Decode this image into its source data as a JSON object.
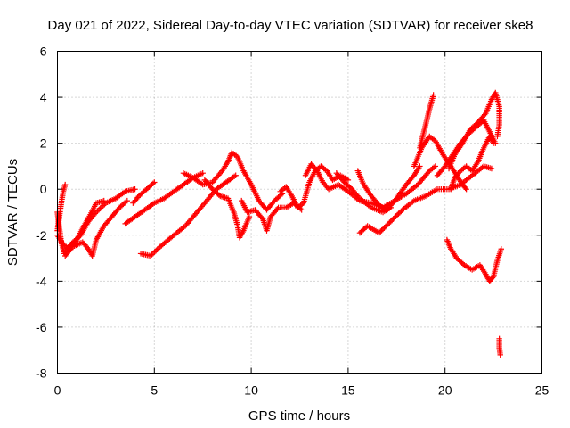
{
  "chart_data": {
    "type": "scatter",
    "title": "Day 021 of 2022, Sidereal Day-to-day VTEC variation (SDTVAR) for receiver ske8",
    "xlabel": "GPS time / hours",
    "ylabel": "SDTVAR / TECUs",
    "xlim": [
      0,
      25
    ],
    "ylim": [
      -8,
      6
    ],
    "xticks": [
      0,
      5,
      10,
      15,
      20,
      25
    ],
    "yticks": [
      -8,
      -6,
      -4,
      -2,
      0,
      2,
      4,
      6
    ],
    "grid": true,
    "marker": "+",
    "color": "#ff0000",
    "series": [
      {
        "name": "t1",
        "points": [
          [
            0.0,
            -1.0
          ],
          [
            0.1,
            -1.7
          ],
          [
            0.2,
            -2.3
          ],
          [
            0.35,
            -2.8
          ],
          [
            0.5,
            -2.6
          ],
          [
            0.8,
            -2.3
          ],
          [
            1.2,
            -2.0
          ],
          [
            1.6,
            -1.4
          ],
          [
            2.0,
            -1.0
          ],
          [
            2.5,
            -0.6
          ],
          [
            3.0,
            -0.4
          ],
          [
            3.5,
            -0.1
          ],
          [
            4.0,
            0.0
          ]
        ]
      },
      {
        "name": "t2",
        "points": [
          [
            0.0,
            -1.8
          ],
          [
            0.1,
            -1.2
          ],
          [
            0.2,
            -0.6
          ],
          [
            0.3,
            -0.1
          ],
          [
            0.4,
            0.2
          ]
        ]
      },
      {
        "name": "t3",
        "points": [
          [
            0.4,
            -2.9
          ],
          [
            0.8,
            -2.5
          ],
          [
            1.3,
            -2.3
          ],
          [
            1.6,
            -2.6
          ],
          [
            1.8,
            -2.9
          ],
          [
            2.0,
            -2.2
          ],
          [
            2.4,
            -1.6
          ],
          [
            2.8,
            -1.2
          ],
          [
            3.2,
            -0.8
          ],
          [
            3.6,
            -0.5
          ]
        ]
      },
      {
        "name": "t4",
        "points": [
          [
            0.0,
            -2.0
          ],
          [
            0.3,
            -2.4
          ],
          [
            0.6,
            -2.6
          ],
          [
            1.0,
            -2.2
          ],
          [
            1.3,
            -1.7
          ],
          [
            1.7,
            -1.1
          ],
          [
            2.0,
            -0.6
          ],
          [
            2.4,
            -0.5
          ]
        ]
      },
      {
        "name": "t5",
        "points": [
          [
            3.5,
            -1.5
          ],
          [
            4.0,
            -1.2
          ],
          [
            4.5,
            -0.9
          ],
          [
            5.0,
            -0.6
          ],
          [
            5.5,
            -0.4
          ],
          [
            6.0,
            -0.1
          ],
          [
            6.5,
            0.2
          ],
          [
            7.0,
            0.5
          ],
          [
            7.5,
            0.7
          ]
        ]
      },
      {
        "name": "t6",
        "points": [
          [
            3.9,
            -0.6
          ],
          [
            4.2,
            -0.3
          ],
          [
            4.6,
            0.0
          ],
          [
            5.0,
            0.3
          ]
        ]
      },
      {
        "name": "t7",
        "points": [
          [
            4.3,
            -2.8
          ],
          [
            4.8,
            -2.9
          ],
          [
            5.3,
            -2.5
          ],
          [
            6.0,
            -2.0
          ],
          [
            6.6,
            -1.6
          ],
          [
            7.2,
            -1.0
          ],
          [
            7.7,
            -0.5
          ],
          [
            8.2,
            0.0
          ],
          [
            8.7,
            0.3
          ],
          [
            9.2,
            0.6
          ]
        ]
      },
      {
        "name": "t8",
        "points": [
          [
            6.5,
            0.7
          ],
          [
            7.0,
            0.5
          ],
          [
            7.5,
            0.2
          ],
          [
            8.0,
            0.3
          ],
          [
            8.5,
            0.8
          ],
          [
            8.8,
            1.2
          ],
          [
            9.0,
            1.6
          ],
          [
            9.3,
            1.4
          ],
          [
            9.6,
            0.8
          ],
          [
            10.0,
            0.2
          ],
          [
            10.4,
            -0.5
          ],
          [
            10.8,
            -0.9
          ],
          [
            11.2,
            -0.5
          ],
          [
            11.6,
            -0.2
          ]
        ]
      },
      {
        "name": "t9",
        "points": [
          [
            7.6,
            0.4
          ],
          [
            8.0,
            0.0
          ],
          [
            8.4,
            -0.3
          ],
          [
            8.8,
            -0.4
          ],
          [
            9.1,
            -1.0
          ],
          [
            9.3,
            -1.6
          ],
          [
            9.4,
            -2.1
          ],
          [
            9.6,
            -1.8
          ],
          [
            9.9,
            -1.2
          ]
        ]
      },
      {
        "name": "t10",
        "points": [
          [
            9.5,
            -0.5
          ],
          [
            9.8,
            -1.0
          ],
          [
            10.2,
            -0.9
          ],
          [
            10.6,
            -1.3
          ],
          [
            10.8,
            -1.8
          ],
          [
            11.0,
            -1.2
          ],
          [
            11.4,
            -0.8
          ],
          [
            11.8,
            -0.8
          ],
          [
            12.2,
            -0.6
          ],
          [
            12.6,
            -0.9
          ]
        ]
      },
      {
        "name": "t11",
        "points": [
          [
            11.5,
            -0.1
          ],
          [
            11.8,
            0.1
          ],
          [
            12.1,
            -0.3
          ],
          [
            12.4,
            -0.8
          ],
          [
            12.7,
            -0.6
          ],
          [
            13.0,
            0.3
          ],
          [
            13.3,
            0.8
          ],
          [
            13.6,
            1.0
          ],
          [
            13.9,
            0.8
          ],
          [
            14.2,
            0.4
          ],
          [
            14.6,
            0.6
          ],
          [
            15.0,
            0.4
          ]
        ]
      },
      {
        "name": "t12",
        "points": [
          [
            12.8,
            0.6
          ],
          [
            13.1,
            1.1
          ],
          [
            13.4,
            0.8
          ],
          [
            13.7,
            0.3
          ],
          [
            14.0,
            0.0
          ],
          [
            14.5,
            0.2
          ],
          [
            15.0,
            -0.1
          ],
          [
            15.6,
            -0.5
          ],
          [
            16.2,
            -0.6
          ],
          [
            16.8,
            -0.8
          ],
          [
            17.4,
            -0.5
          ],
          [
            18.0,
            -0.2
          ],
          [
            18.6,
            0.2
          ],
          [
            19.2,
            0.8
          ],
          [
            19.5,
            1.0
          ]
        ]
      },
      {
        "name": "t13",
        "points": [
          [
            15.5,
            0.8
          ],
          [
            15.8,
            0.2
          ],
          [
            16.2,
            -0.3
          ],
          [
            16.6,
            -0.7
          ],
          [
            17.0,
            -0.9
          ],
          [
            17.5,
            -0.4
          ],
          [
            18.0,
            0.2
          ],
          [
            18.4,
            0.6
          ],
          [
            18.7,
            1.0
          ]
        ]
      },
      {
        "name": "t14",
        "points": [
          [
            14.4,
            0.7
          ],
          [
            14.8,
            0.3
          ],
          [
            15.2,
            0.0
          ],
          [
            15.6,
            -0.4
          ],
          [
            16.2,
            -0.8
          ],
          [
            16.8,
            -1.0
          ],
          [
            17.2,
            -0.8
          ]
        ]
      },
      {
        "name": "t15",
        "points": [
          [
            15.6,
            -1.9
          ],
          [
            16.0,
            -1.6
          ],
          [
            16.6,
            -1.9
          ],
          [
            17.2,
            -1.4
          ],
          [
            17.8,
            -0.9
          ],
          [
            18.4,
            -0.5
          ],
          [
            19.0,
            -0.3
          ],
          [
            19.6,
            0.0
          ],
          [
            20.2,
            0.0
          ],
          [
            20.8,
            0.2
          ],
          [
            21.4,
            0.6
          ],
          [
            22.0,
            1.0
          ],
          [
            22.4,
            0.9
          ]
        ]
      },
      {
        "name": "t16",
        "points": [
          [
            18.7,
            1.8
          ],
          [
            19.0,
            2.8
          ],
          [
            19.2,
            3.5
          ],
          [
            19.4,
            4.1
          ]
        ]
      },
      {
        "name": "t17",
        "points": [
          [
            18.4,
            1.0
          ],
          [
            18.8,
            1.8
          ],
          [
            19.2,
            2.3
          ],
          [
            19.5,
            2.1
          ],
          [
            19.9,
            1.5
          ],
          [
            20.3,
            1.0
          ],
          [
            20.6,
            0.6
          ],
          [
            20.9,
            0.2
          ],
          [
            21.1,
            0.0
          ]
        ]
      },
      {
        "name": "t18",
        "points": [
          [
            19.6,
            0.6
          ],
          [
            20.0,
            1.0
          ],
          [
            20.4,
            1.5
          ],
          [
            20.8,
            2.0
          ],
          [
            21.2,
            2.4
          ],
          [
            21.6,
            2.7
          ],
          [
            22.0,
            3.0
          ],
          [
            22.3,
            2.5
          ],
          [
            22.6,
            2.0
          ]
        ]
      },
      {
        "name": "t19",
        "points": [
          [
            20.2,
            0.9
          ],
          [
            20.5,
            1.5
          ],
          [
            20.9,
            2.0
          ],
          [
            21.3,
            2.6
          ],
          [
            21.7,
            2.9
          ],
          [
            22.1,
            3.3
          ],
          [
            22.4,
            3.9
          ],
          [
            22.6,
            4.2
          ],
          [
            22.8,
            3.6
          ],
          [
            22.8,
            2.8
          ],
          [
            22.7,
            2.3
          ]
        ]
      },
      {
        "name": "t20",
        "points": [
          [
            20.3,
            0.0
          ],
          [
            20.5,
            0.5
          ],
          [
            20.8,
            0.8
          ],
          [
            21.1,
            1.0
          ],
          [
            21.4,
            0.8
          ],
          [
            21.7,
            1.2
          ],
          [
            22.0,
            1.8
          ],
          [
            22.3,
            2.3
          ],
          [
            22.5,
            2.0
          ]
        ]
      },
      {
        "name": "t21",
        "points": [
          [
            20.1,
            -2.2
          ],
          [
            20.3,
            -2.6
          ],
          [
            20.6,
            -3.0
          ],
          [
            21.0,
            -3.3
          ],
          [
            21.4,
            -3.5
          ],
          [
            21.8,
            -3.3
          ],
          [
            22.1,
            -3.7
          ],
          [
            22.3,
            -4.0
          ],
          [
            22.5,
            -3.8
          ],
          [
            22.7,
            -3.1
          ],
          [
            22.9,
            -2.6
          ]
        ]
      },
      {
        "name": "t22",
        "points": [
          [
            22.8,
            -6.5
          ],
          [
            22.8,
            -6.9
          ],
          [
            22.85,
            -7.2
          ]
        ]
      }
    ]
  }
}
